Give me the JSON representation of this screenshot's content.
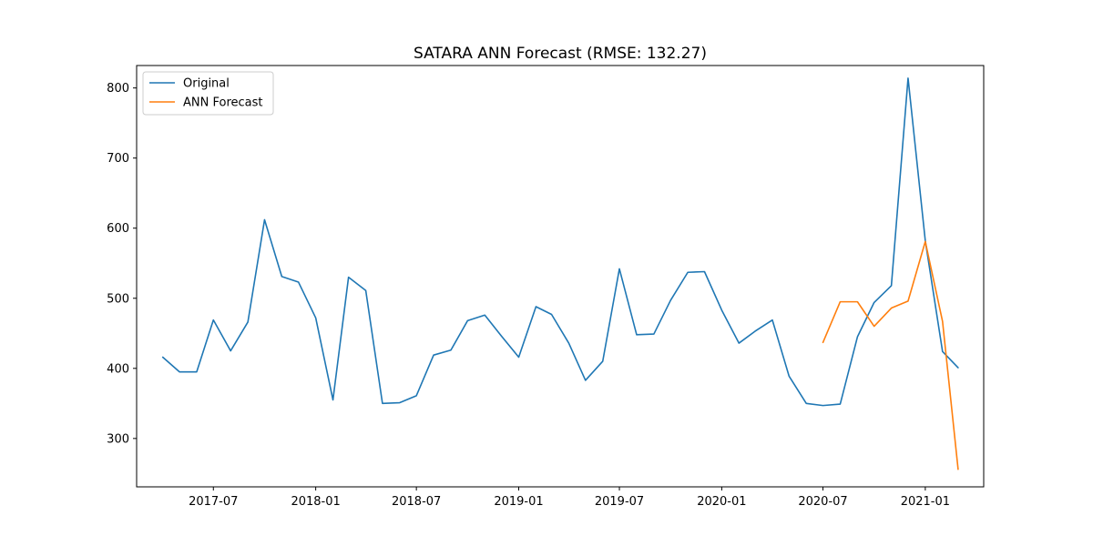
{
  "chart_data": {
    "type": "line",
    "title": "SATARA ANN Forecast (RMSE: 132.27)",
    "xlabel": "",
    "ylabel": "",
    "xlim": [
      "2017-02-13",
      "2021-04-16"
    ],
    "ylim": [
      231,
      832
    ],
    "x_ticks": [
      "2017-07",
      "2018-01",
      "2018-07",
      "2019-01",
      "2019-07",
      "2020-01",
      "2020-07",
      "2021-01"
    ],
    "y_ticks": [
      300,
      400,
      500,
      600,
      700,
      800
    ],
    "grid": false,
    "legend_position": "upper-left",
    "series": [
      {
        "name": "Original",
        "color": "#1f77b4",
        "x": [
          "2017-04",
          "2017-05",
          "2017-06",
          "2017-07",
          "2017-08",
          "2017-09",
          "2017-10",
          "2017-11",
          "2017-12",
          "2018-01",
          "2018-02",
          "2018-03",
          "2018-04",
          "2018-05",
          "2018-06",
          "2018-07",
          "2018-08",
          "2018-09",
          "2018-10",
          "2018-11",
          "2018-12",
          "2019-01",
          "2019-02",
          "2019-03",
          "2019-04",
          "2019-05",
          "2019-06",
          "2019-07",
          "2019-08",
          "2019-09",
          "2019-10",
          "2019-11",
          "2019-12",
          "2020-01",
          "2020-02",
          "2020-03",
          "2020-04",
          "2020-05",
          "2020-06",
          "2020-07",
          "2020-08",
          "2020-09",
          "2020-10",
          "2020-11",
          "2020-12",
          "2021-01",
          "2021-02",
          "2021-03"
        ],
        "values": [
          416,
          395,
          395,
          469,
          425,
          466,
          612,
          531,
          523,
          472,
          355,
          530,
          511,
          350,
          351,
          361,
          419,
          426,
          468,
          476,
          446,
          416,
          488,
          477,
          436,
          383,
          410,
          542,
          448,
          449,
          497,
          537,
          538,
          483,
          436,
          453,
          469,
          389,
          350,
          347,
          349,
          445,
          494,
          518,
          814,
          582,
          424,
          401
        ]
      },
      {
        "name": "ANN Forecast",
        "color": "#ff7f0e",
        "x": [
          "2020-07",
          "2020-08",
          "2020-09",
          "2020-10",
          "2020-11",
          "2020-12",
          "2021-01",
          "2021-02",
          "2021-03"
        ],
        "values": [
          437,
          495,
          495,
          460,
          486,
          496,
          581,
          467,
          256
        ]
      }
    ]
  }
}
